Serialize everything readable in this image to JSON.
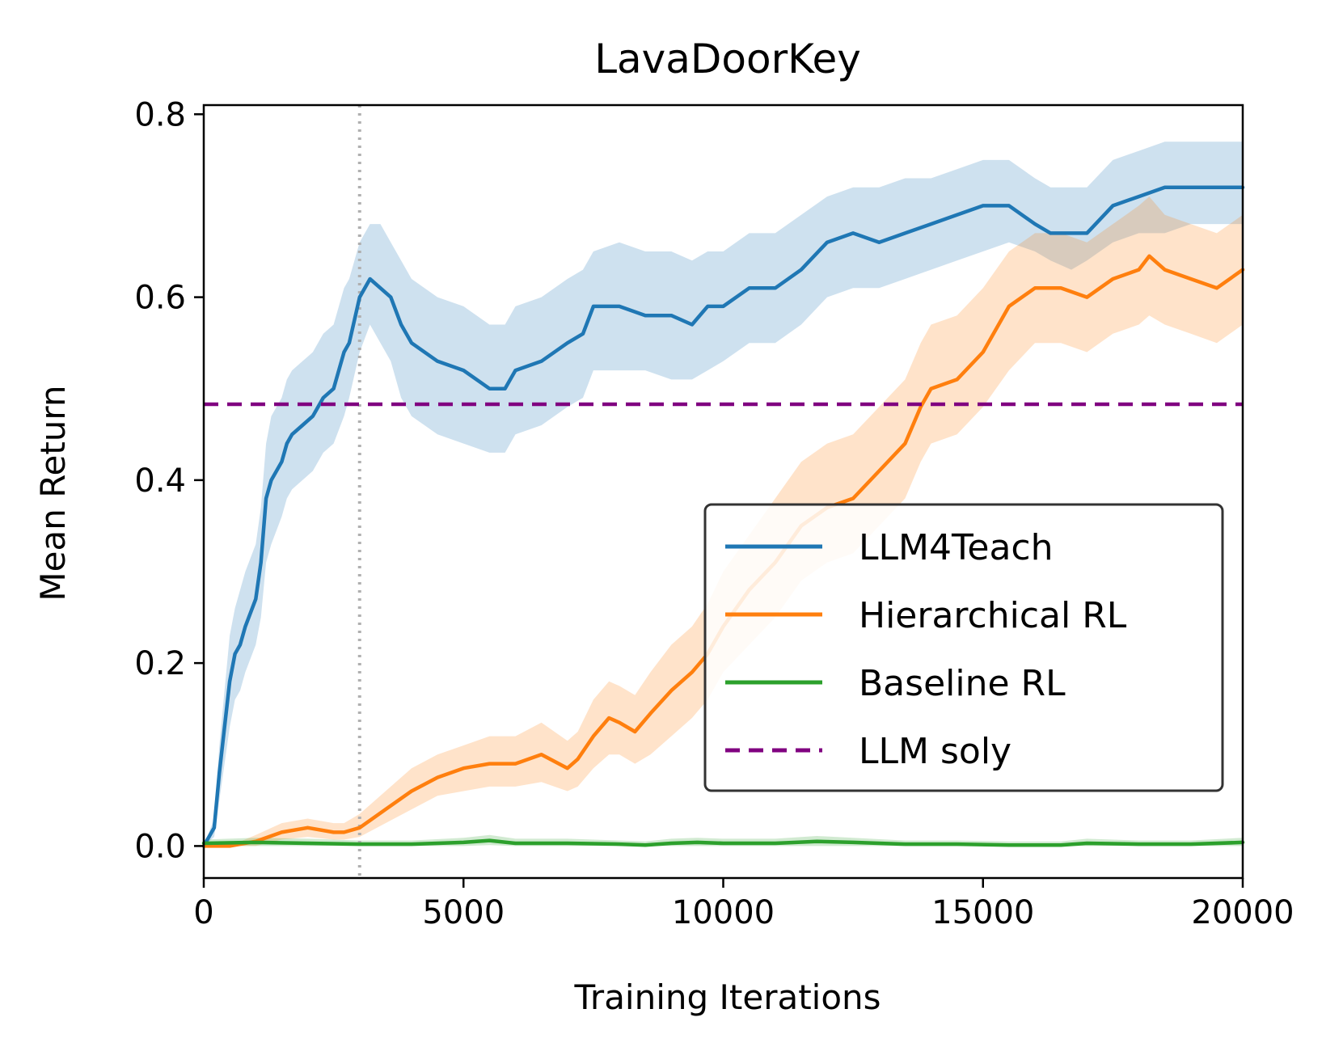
{
  "chart_data": {
    "type": "line",
    "title": "LavaDoorKey",
    "xlabel": "Training Iterations",
    "ylabel": "Mean Return",
    "xlim": [
      0,
      20000
    ],
    "ylim": [
      -0.035,
      0.81
    ],
    "xticks": [
      0,
      5000,
      10000,
      15000,
      20000
    ],
    "xtick_labels": [
      "0",
      "5000",
      "10000",
      "15000",
      "20000"
    ],
    "yticks": [
      0.0,
      0.2,
      0.4,
      0.6,
      0.8
    ],
    "ytick_labels": [
      "0.0",
      "0.2",
      "0.4",
      "0.6",
      "0.8"
    ],
    "legend_position": "center-right",
    "vertical_reference": {
      "x": 3000,
      "style": "dotted",
      "color": "#b0b0b0"
    },
    "series": [
      {
        "name": "LLM4Teach",
        "color": "#1f77b4",
        "style": "solid",
        "x": [
          0,
          200,
          300,
          400,
          500,
          600,
          700,
          800,
          1000,
          1100,
          1200,
          1300,
          1500,
          1600,
          1700,
          1900,
          2100,
          2300,
          2500,
          2700,
          2800,
          3000,
          3200,
          3400,
          3600,
          3800,
          4000,
          4500,
          5000,
          5500,
          5800,
          6000,
          6500,
          7000,
          7300,
          7500,
          8000,
          8500,
          9000,
          9400,
          9700,
          10000,
          10500,
          11000,
          11500,
          12000,
          12500,
          13000,
          13500,
          14000,
          14500,
          15000,
          15500,
          16000,
          16300,
          16700,
          17000,
          17500,
          18000,
          18500,
          19000,
          19500,
          20000
        ],
        "y": [
          0.0,
          0.02,
          0.08,
          0.13,
          0.18,
          0.21,
          0.22,
          0.24,
          0.27,
          0.31,
          0.38,
          0.4,
          0.42,
          0.44,
          0.45,
          0.46,
          0.47,
          0.49,
          0.5,
          0.54,
          0.55,
          0.6,
          0.62,
          0.61,
          0.6,
          0.57,
          0.55,
          0.53,
          0.52,
          0.5,
          0.5,
          0.52,
          0.53,
          0.55,
          0.56,
          0.59,
          0.59,
          0.58,
          0.58,
          0.57,
          0.59,
          0.59,
          0.61,
          0.61,
          0.63,
          0.66,
          0.67,
          0.66,
          0.67,
          0.68,
          0.69,
          0.7,
          0.7,
          0.68,
          0.67,
          0.67,
          0.67,
          0.7,
          0.71,
          0.72,
          0.72,
          0.72,
          0.72
        ],
        "lower": [
          0.0,
          0.01,
          0.05,
          0.09,
          0.13,
          0.16,
          0.17,
          0.19,
          0.22,
          0.25,
          0.31,
          0.33,
          0.36,
          0.38,
          0.39,
          0.4,
          0.41,
          0.43,
          0.44,
          0.47,
          0.49,
          0.54,
          0.57,
          0.55,
          0.53,
          0.49,
          0.47,
          0.45,
          0.44,
          0.43,
          0.43,
          0.45,
          0.46,
          0.48,
          0.49,
          0.52,
          0.52,
          0.52,
          0.51,
          0.51,
          0.52,
          0.53,
          0.55,
          0.55,
          0.57,
          0.6,
          0.61,
          0.61,
          0.62,
          0.63,
          0.64,
          0.65,
          0.66,
          0.65,
          0.64,
          0.63,
          0.64,
          0.66,
          0.67,
          0.67,
          0.68,
          0.68,
          0.68
        ],
        "upper": [
          0.0,
          0.03,
          0.11,
          0.17,
          0.23,
          0.26,
          0.28,
          0.3,
          0.33,
          0.37,
          0.44,
          0.47,
          0.49,
          0.51,
          0.52,
          0.53,
          0.54,
          0.56,
          0.57,
          0.61,
          0.62,
          0.66,
          0.68,
          0.68,
          0.66,
          0.64,
          0.62,
          0.6,
          0.59,
          0.57,
          0.57,
          0.59,
          0.6,
          0.62,
          0.63,
          0.65,
          0.66,
          0.65,
          0.65,
          0.64,
          0.65,
          0.65,
          0.67,
          0.67,
          0.69,
          0.71,
          0.72,
          0.72,
          0.73,
          0.73,
          0.74,
          0.75,
          0.75,
          0.73,
          0.72,
          0.72,
          0.72,
          0.75,
          0.76,
          0.77,
          0.77,
          0.77,
          0.77
        ]
      },
      {
        "name": "Hierarchical RL",
        "color": "#ff7f0e",
        "style": "solid",
        "x": [
          0,
          500,
          1000,
          1500,
          2000,
          2500,
          2700,
          3000,
          3500,
          4000,
          4500,
          5000,
          5500,
          6000,
          6500,
          7000,
          7200,
          7500,
          7800,
          8000,
          8300,
          8600,
          9000,
          9400,
          9700,
          10000,
          10500,
          11000,
          11500,
          12000,
          12500,
          13000,
          13500,
          13800,
          14000,
          14500,
          15000,
          15500,
          16000,
          16500,
          17000,
          17500,
          18000,
          18200,
          18500,
          19000,
          19500,
          20000
        ],
        "y": [
          0.0,
          0.0,
          0.005,
          0.015,
          0.02,
          0.015,
          0.015,
          0.02,
          0.04,
          0.06,
          0.075,
          0.085,
          0.09,
          0.09,
          0.1,
          0.085,
          0.095,
          0.12,
          0.14,
          0.135,
          0.125,
          0.145,
          0.17,
          0.19,
          0.21,
          0.24,
          0.28,
          0.31,
          0.35,
          0.37,
          0.38,
          0.41,
          0.44,
          0.48,
          0.5,
          0.51,
          0.54,
          0.59,
          0.61,
          0.61,
          0.6,
          0.62,
          0.63,
          0.645,
          0.63,
          0.62,
          0.61,
          0.63
        ],
        "lower": [
          0.0,
          0.0,
          0.0,
          0.007,
          0.01,
          0.007,
          0.007,
          0.01,
          0.025,
          0.04,
          0.055,
          0.06,
          0.065,
          0.065,
          0.07,
          0.06,
          0.065,
          0.085,
          0.1,
          0.1,
          0.09,
          0.1,
          0.12,
          0.14,
          0.16,
          0.19,
          0.22,
          0.25,
          0.29,
          0.31,
          0.32,
          0.35,
          0.38,
          0.42,
          0.44,
          0.45,
          0.48,
          0.52,
          0.55,
          0.55,
          0.54,
          0.56,
          0.57,
          0.58,
          0.57,
          0.56,
          0.55,
          0.57
        ],
        "upper": [
          0.0,
          0.0,
          0.012,
          0.025,
          0.03,
          0.025,
          0.025,
          0.035,
          0.06,
          0.085,
          0.1,
          0.11,
          0.12,
          0.12,
          0.135,
          0.115,
          0.125,
          0.16,
          0.18,
          0.175,
          0.165,
          0.19,
          0.22,
          0.24,
          0.265,
          0.3,
          0.34,
          0.38,
          0.42,
          0.44,
          0.45,
          0.48,
          0.51,
          0.55,
          0.57,
          0.58,
          0.61,
          0.65,
          0.67,
          0.67,
          0.66,
          0.68,
          0.7,
          0.71,
          0.69,
          0.68,
          0.67,
          0.69
        ]
      },
      {
        "name": "Baseline RL",
        "color": "#2ca02c",
        "style": "solid",
        "x": [
          0,
          1000,
          2000,
          3000,
          4000,
          5000,
          5500,
          6000,
          7000,
          8000,
          8500,
          9000,
          9500,
          10000,
          11000,
          11800,
          12500,
          13500,
          14500,
          15500,
          16500,
          17000,
          18000,
          19000,
          20000
        ],
        "y": [
          0.003,
          0.004,
          0.003,
          0.002,
          0.002,
          0.004,
          0.006,
          0.003,
          0.003,
          0.002,
          0.001,
          0.003,
          0.004,
          0.003,
          0.003,
          0.005,
          0.004,
          0.002,
          0.002,
          0.001,
          0.001,
          0.003,
          0.002,
          0.002,
          0.004
        ],
        "lower": [
          0.0,
          0.0,
          0.0,
          0.0,
          0.0,
          0.0,
          0.001,
          0.0,
          0.0,
          0.0,
          0.0,
          0.0,
          0.0,
          0.0,
          0.0,
          0.0,
          0.0,
          0.0,
          0.0,
          0.0,
          0.0,
          0.0,
          0.0,
          0.0,
          0.0
        ],
        "upper": [
          0.007,
          0.009,
          0.008,
          0.006,
          0.006,
          0.009,
          0.012,
          0.008,
          0.008,
          0.006,
          0.005,
          0.008,
          0.009,
          0.008,
          0.008,
          0.011,
          0.009,
          0.006,
          0.006,
          0.005,
          0.005,
          0.008,
          0.006,
          0.006,
          0.009
        ]
      },
      {
        "name": "LLM soly",
        "color": "#800080",
        "style": "dashed",
        "constant": 0.483
      }
    ]
  }
}
